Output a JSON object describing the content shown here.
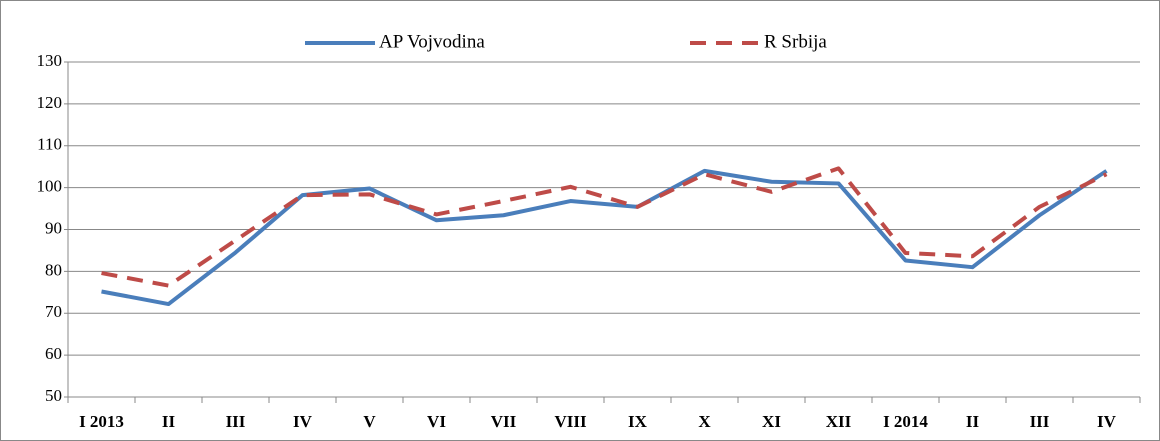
{
  "chart_data": {
    "type": "line",
    "categories": [
      "I 2013",
      "II",
      "III",
      "IV",
      "V",
      "VI",
      "VII",
      "VIII",
      "IX",
      "X",
      "XI",
      "XII",
      "I 2014",
      "II",
      "III",
      "IV"
    ],
    "series": [
      {
        "name": "AP Vojvodina",
        "color": "#4a7ebb",
        "dash": false,
        "values": [
          75.2,
          72.2,
          84.5,
          98.2,
          99.8,
          92.2,
          93.4,
          96.8,
          95.4,
          104,
          101.4,
          101,
          82.6,
          81,
          93.4,
          104
        ]
      },
      {
        "name": "R Srbija",
        "color": "#be4b48",
        "dash": true,
        "values": [
          79.6,
          76.6,
          87.4,
          98.2,
          98.4,
          93.6,
          96.8,
          100.2,
          95.4,
          103.2,
          99,
          104.6,
          84.4,
          83.6,
          95.4,
          103.2
        ]
      }
    ],
    "ylim": [
      50,
      130
    ],
    "yticks": [
      50,
      60,
      70,
      80,
      90,
      100,
      110,
      120,
      130
    ],
    "grid": true,
    "legend": "top"
  }
}
